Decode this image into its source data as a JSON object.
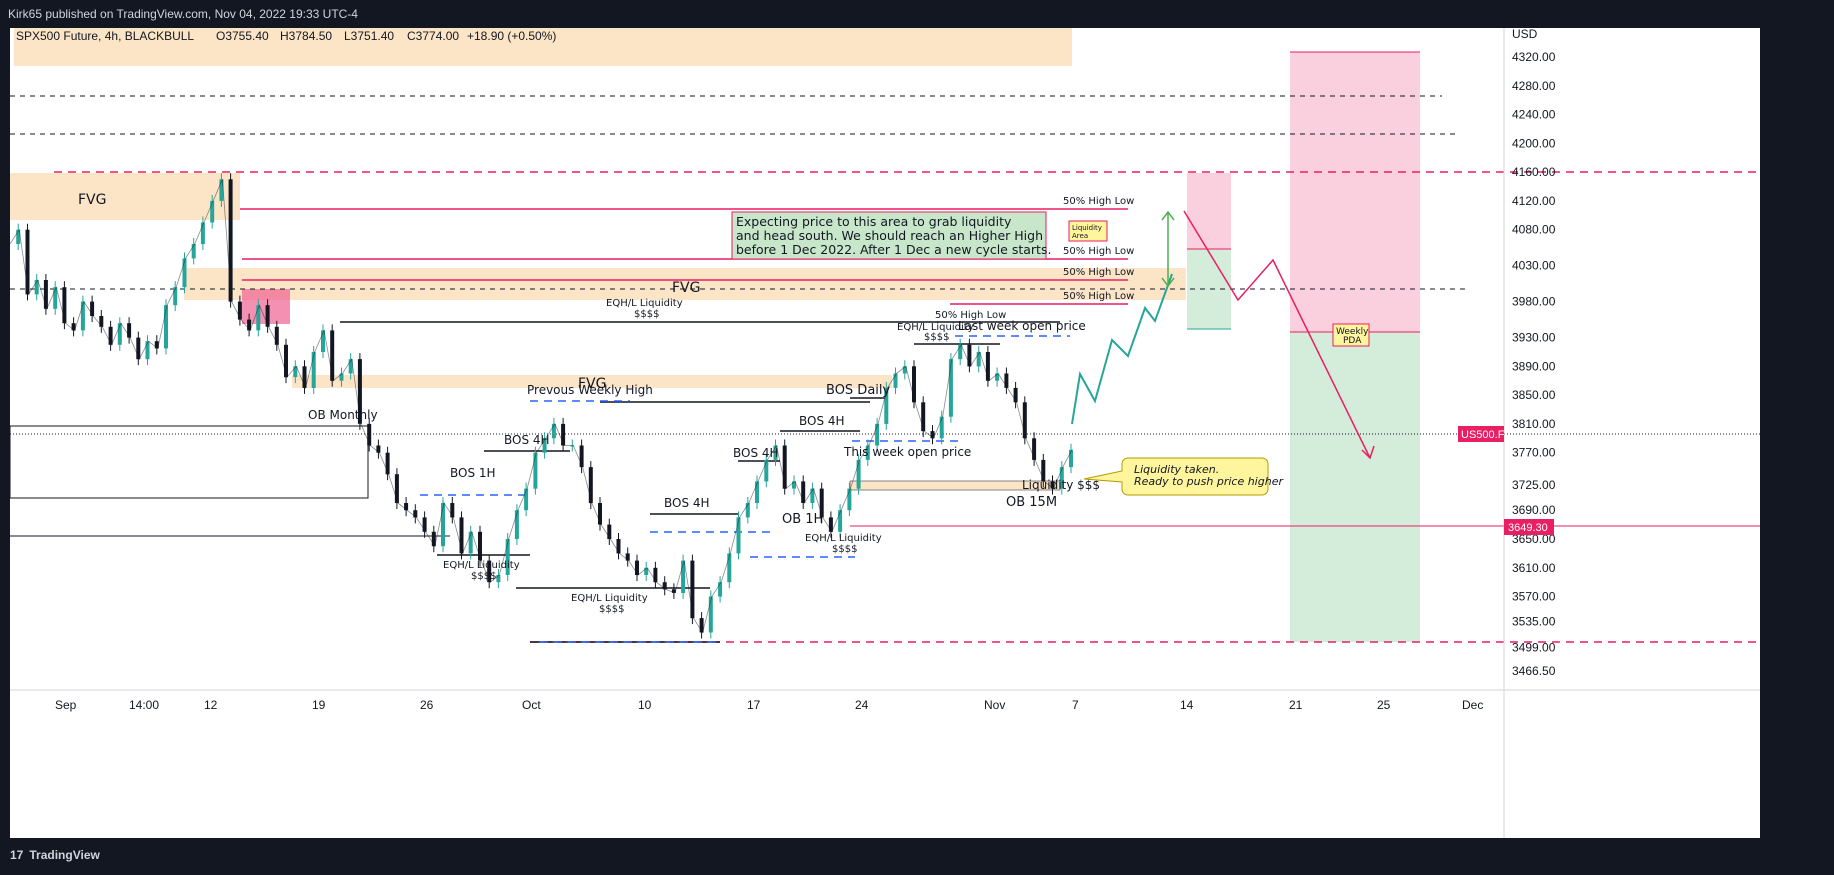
{
  "header": {
    "published": "Kirk65 published on TradingView.com, Nov 04, 2022 19:33 UTC-4"
  },
  "footer": {
    "brand": "TradingView"
  },
  "chart_data": {
    "type": "line",
    "title": "SPX500 Future, 4h, BLACKBULL",
    "ohlc": {
      "open": "O3755.40",
      "high": "H3784.50",
      "low": "L3751.40",
      "close": "C3774.00",
      "change": "+18.90 (+0.50%)"
    },
    "y_unit": "USD",
    "y_ticks": [
      4320,
      4280,
      4240,
      4200,
      4160,
      4120,
      4080,
      4030,
      3980,
      3930,
      3890,
      3850,
      3810,
      3770,
      3725,
      3690,
      3650,
      3610,
      3570,
      3535,
      3499,
      3466.5
    ],
    "y_tick_labels": [
      "4320.00",
      "4280.00",
      "4240.00",
      "4200.00",
      "4160.00",
      "4120.00",
      "4080.00",
      "4030.00",
      "3980.00",
      "3930.00",
      "3890.00",
      "3850.00",
      "3810.00",
      "3770.00",
      "3725.00",
      "3690.00",
      "3650.00",
      "3610.00",
      "3570.00",
      "3535.00",
      "3499.00",
      "3466.50"
    ],
    "x_ticks": [
      "Sep",
      "14:00",
      "12",
      "19",
      "26",
      "Oct",
      "10",
      "17",
      "24",
      "Nov",
      "7",
      "14",
      "21",
      "25",
      "Dec"
    ],
    "current_price_label": "US500.F",
    "level_label": "3649.30",
    "series": [
      {
        "x": [
          0,
          1,
          2,
          3,
          4,
          5,
          6,
          7,
          8,
          9,
          10,
          11,
          12,
          13,
          14,
          15,
          16,
          17,
          18,
          19,
          20,
          21,
          22,
          23,
          24,
          25,
          26,
          27,
          28,
          29,
          30,
          31,
          32,
          33,
          34,
          35,
          36,
          37,
          38,
          39,
          40,
          41,
          42,
          43,
          44,
          45,
          46,
          47,
          48,
          49,
          50,
          51,
          52,
          53,
          54,
          55,
          56,
          57,
          58,
          59,
          60,
          61,
          62,
          63,
          64,
          65,
          66,
          67,
          68,
          69,
          70,
          71,
          72,
          73,
          74,
          75,
          76,
          77,
          78,
          79,
          80,
          81,
          82,
          83,
          84,
          85,
          86,
          87,
          88,
          89,
          90,
          91,
          92,
          93,
          94,
          95,
          96,
          97,
          98,
          99,
          100,
          101,
          102,
          103,
          104,
          105,
          106,
          107,
          108,
          109,
          110,
          111,
          112,
          113,
          114,
          115
        ],
        "y": [
          4060,
          4080,
          3990,
          4010,
          3970,
          4000,
          3950,
          3940,
          3980,
          3960,
          3945,
          3920,
          3950,
          3930,
          3900,
          3925,
          3915,
          3975,
          4000,
          4040,
          4060,
          4090,
          4120,
          4150,
          3980,
          3955,
          3940,
          3975,
          3945,
          3920,
          3875,
          3890,
          3860,
          3910,
          3940,
          3870,
          3880,
          3900,
          3810,
          3780,
          3770,
          3740,
          3700,
          3690,
          3680,
          3660,
          3640,
          3700,
          3680,
          3630,
          3660,
          3620,
          3590,
          3600,
          3650,
          3690,
          3720,
          3770,
          3790,
          3810,
          3780,
          3780,
          3750,
          3700,
          3670,
          3650,
          3630,
          3620,
          3600,
          3610,
          3590,
          3580,
          3575,
          3620,
          3540,
          3520,
          3570,
          3590,
          3630,
          3680,
          3700,
          3730,
          3760,
          3780,
          3720,
          3730,
          3700,
          3720,
          3680,
          3660,
          3690,
          3720,
          3760,
          3780,
          3810,
          3860,
          3880,
          3890,
          3840,
          3800,
          3790,
          3820,
          3900,
          3920,
          3890,
          3910,
          3870,
          3880,
          3860,
          3840,
          3790,
          3760,
          3730,
          3720,
          3750,
          3774
        ],
        "name": ""
      }
    ],
    "annotations": {
      "fvg_left": "FVG",
      "fvg_mid": "FVG",
      "fvg_center": "FVG",
      "ob_monthly": "OB Monthly",
      "bos4h_1": "BOS 4H",
      "bos1h_1": "BOS 1H",
      "bos4h_2": "BOS 4H",
      "bos4h_3": "BOS 4H",
      "bos4h_4": "BOS 4H",
      "bos_daily": "BOS Daily",
      "ob_1h": "OB 1H",
      "ob_15m": "OB 15M",
      "prev_weekly_high": "Prevous Weekly High",
      "eqh_1": "EQH/L  Liquidity",
      "ssss_1": "$$$$",
      "eqh_2": "EQH/L  Liquidity",
      "ssss_2": "$$$$",
      "eqh_3": "EQH/L  Liquidity",
      "ssss_3": "$$$$",
      "eqh_4": "EQH/L  Liquidity",
      "ssss_4": "$$$$",
      "eqh_5": "EQH/L  Liquidity",
      "ssss_5": "$$$$",
      "this_week_open": "This week open price",
      "last_week_open": "Last week open price",
      "liquidity_sss": "Liquidity $$$",
      "half_hl_1": "50% High Low",
      "half_hl_2": "50% High Low",
      "half_hl_3": "50% High Low",
      "half_hl_4": "50% High Low",
      "half_hl_5": "50% High Low",
      "note_line1": "Expecting price to this area to grab liquidity",
      "note_line2": "and head south. We should reach an Higher High",
      "note_line3": "before 1 Dec 2022. After 1 Dec a new cycle starts.",
      "liquidity_area_1": "Liquidity",
      "liquidity_area_2": "Area",
      "callout_1": "Liquidity taken.",
      "callout_2": "Ready to push price higher",
      "weekly_pda_1": "Weekly",
      "weekly_pda_2": "PDA"
    },
    "colors": {
      "up": "#26a69a",
      "down": "#131722",
      "fvg": "#fce5c6",
      "pink_zone": "#f8c8d8",
      "green_zone": "#d4edda",
      "red_line": "#e91e63",
      "note_bg": "#c8e6c9",
      "callout_bg": "#fff59d"
    }
  }
}
